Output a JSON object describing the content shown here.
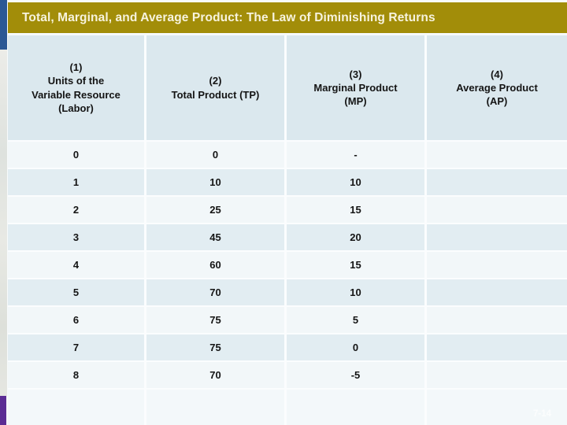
{
  "slide": {
    "title": "Total, Marginal, and Average Product: The Law of Diminishing Returns",
    "page_number": "7-14"
  },
  "colors": {
    "title_bar_gold": "#A28D09",
    "title_text_cream": "#F7F3DE",
    "left_accent_blue": "#2B5894",
    "left_accent_purple": "#5B2C94",
    "header_cell_bg": "#DBE8EE",
    "row_light_bg": "#F2F7F9",
    "row_shaded_bg": "#E2EDF2",
    "cell_text": "#141414"
  },
  "table": {
    "headers": [
      "(1)\nUnits of the\nVariable Resource\n(Labor)",
      "(2)\nTotal Product (TP)",
      "(3)\nMarginal Product\n(MP)",
      "(4)\nAverage Product\n(AP)"
    ],
    "rows": [
      {
        "units": "0",
        "tp": "0",
        "mp": "-",
        "ap": ""
      },
      {
        "units": "1",
        "tp": "10",
        "mp": "10",
        "ap": ""
      },
      {
        "units": "2",
        "tp": "25",
        "mp": "15",
        "ap": ""
      },
      {
        "units": "3",
        "tp": "45",
        "mp": "20",
        "ap": ""
      },
      {
        "units": "4",
        "tp": "60",
        "mp": "15",
        "ap": ""
      },
      {
        "units": "5",
        "tp": "70",
        "mp": "10",
        "ap": ""
      },
      {
        "units": "6",
        "tp": "75",
        "mp": "5",
        "ap": ""
      },
      {
        "units": "7",
        "tp": "75",
        "mp": "0",
        "ap": ""
      },
      {
        "units": "8",
        "tp": "70",
        "mp": "-5",
        "ap": ""
      }
    ]
  }
}
